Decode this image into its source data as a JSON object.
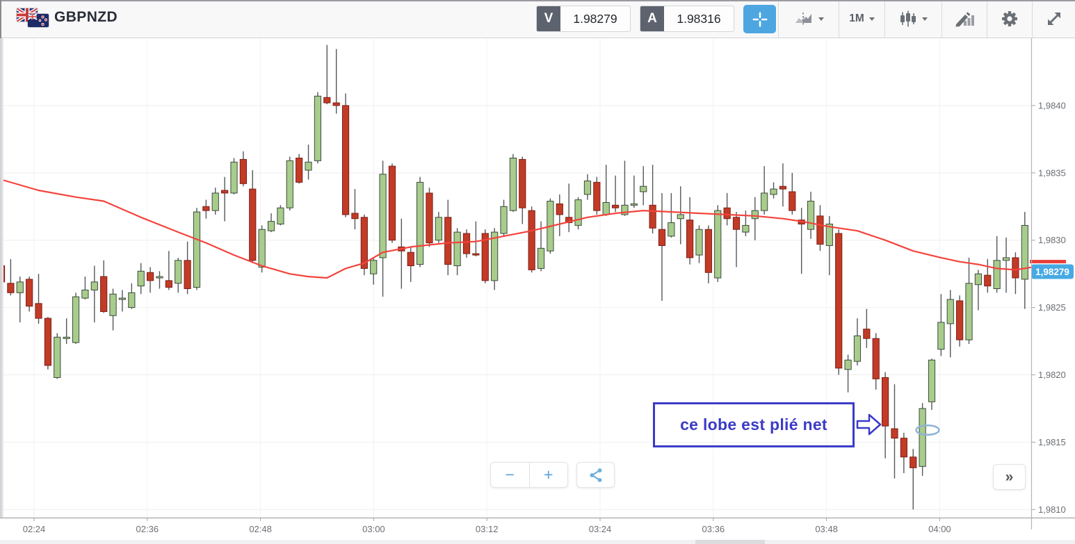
{
  "header": {
    "symbol": "GBPNZD",
    "sell": {
      "label": "V",
      "price": "1.98279"
    },
    "buy": {
      "label": "A",
      "price": "1.98316"
    },
    "interval": "1M",
    "crosshair_color": "#4da6e0"
  },
  "toolbar": {
    "items": [
      {
        "icon": "compare-chart-icon",
        "has_caret": true
      },
      {
        "icon": "interval-label",
        "label": "1M",
        "has_caret": true
      },
      {
        "icon": "chart-type-candles-icon",
        "has_caret": true
      },
      {
        "icon": "draw-indicator-icon"
      },
      {
        "icon": "settings-gear-icon"
      },
      {
        "icon": "fullscreen-icon"
      }
    ]
  },
  "annotation": {
    "text": "ce lobe est plié net",
    "color": "#3b3bc8",
    "arrow_fill": "#ffffff",
    "ellipse_color": "#8fb2d4"
  },
  "controls": {
    "zoom_out_label": "−",
    "zoom_in_label": "+",
    "share_icon": "share-icon",
    "collapse_label": "»"
  },
  "chart_data": {
    "type": "candlestick",
    "symbol": "GBPNZD",
    "interval": "1m",
    "grid": true,
    "ylim": [
      1.98094,
      1.9845
    ],
    "up_color": "#a8cc8c",
    "up_border": "#3c4a3c",
    "down_color": "#c23b26",
    "down_border": "#7d1f16",
    "wick_color": "#54575c",
    "ma_color": "#f4433c",
    "price_tag_color": "#47a9e3",
    "price_line_color": "#e8403a",
    "current_price": 1.98279,
    "current_price_label": "1,98279",
    "y_ticks": [
      {
        "price": 1.984,
        "label": "1,9840"
      },
      {
        "price": 1.9835,
        "label": "1,9835"
      },
      {
        "price": 1.983,
        "label": "1,9830"
      },
      {
        "price": 1.9825,
        "label": "1,9825"
      },
      {
        "price": 1.982,
        "label": "1,9820"
      },
      {
        "price": 1.9815,
        "label": "1,9815"
      },
      {
        "price": 1.981,
        "label": "1,9810"
      }
    ],
    "x_ticks": [
      "02:24",
      "02:36",
      "02:48",
      "03:00",
      "03:12",
      "03:24",
      "03:36",
      "03:48",
      "04:00"
    ],
    "candles": [
      [
        1.98281,
        1.98291,
        1.98267,
        1.98269,
        "d"
      ],
      [
        1.98268,
        1.98286,
        1.98259,
        1.98261,
        "d"
      ],
      [
        1.98261,
        1.98273,
        1.98239,
        1.98269,
        "u"
      ],
      [
        1.98271,
        1.98273,
        1.98247,
        1.98251,
        "d"
      ],
      [
        1.98253,
        1.98275,
        1.98238,
        1.98242,
        "d"
      ],
      [
        1.98242,
        1.98243,
        1.98204,
        1.98207,
        "d"
      ],
      [
        1.98198,
        1.98231,
        1.98197,
        1.98228,
        "u"
      ],
      [
        1.98227,
        1.98242,
        1.98223,
        1.98228,
        "u"
      ],
      [
        1.98224,
        1.98261,
        1.98223,
        1.98258,
        "u"
      ],
      [
        1.98257,
        1.98273,
        1.98256,
        1.98263,
        "u"
      ],
      [
        1.98263,
        1.98281,
        1.98239,
        1.98269,
        "u"
      ],
      [
        1.98273,
        1.98285,
        1.98246,
        1.98247,
        "d"
      ],
      [
        1.98244,
        1.98264,
        1.98233,
        1.9826,
        "u"
      ],
      [
        1.98256,
        1.98263,
        1.98247,
        1.98257,
        "u"
      ],
      [
        1.9825,
        1.98268,
        1.98249,
        1.98261,
        "u"
      ],
      [
        1.98266,
        1.98283,
        1.9826,
        1.98277,
        "u"
      ],
      [
        1.98276,
        1.9828,
        1.98261,
        1.9827,
        "d"
      ],
      [
        1.98272,
        1.98277,
        1.98264,
        1.98273,
        "u"
      ],
      [
        1.9827,
        1.98292,
        1.98263,
        1.98265,
        "d"
      ],
      [
        1.98268,
        1.98287,
        1.98261,
        1.98285,
        "u"
      ],
      [
        1.98285,
        1.98299,
        1.9826,
        1.98264,
        "d"
      ],
      [
        1.98265,
        1.98324,
        1.98263,
        1.98321,
        "u"
      ],
      [
        1.98325,
        1.9833,
        1.98316,
        1.98322,
        "d"
      ],
      [
        1.98322,
        1.98339,
        1.98319,
        1.98335,
        "u"
      ],
      [
        1.98337,
        1.98347,
        1.98314,
        1.98335,
        "d"
      ],
      [
        1.98335,
        1.98361,
        1.98334,
        1.98358,
        "u"
      ],
      [
        1.9836,
        1.98366,
        1.9834,
        1.98342,
        "d"
      ],
      [
        1.98338,
        1.98352,
        1.98283,
        1.98285,
        "d"
      ],
      [
        1.9828,
        1.98311,
        1.98276,
        1.98308,
        "u"
      ],
      [
        1.98307,
        1.9832,
        1.98306,
        1.98314,
        "u"
      ],
      [
        1.98312,
        1.98326,
        1.98311,
        1.98324,
        "u"
      ],
      [
        1.98324,
        1.98362,
        1.98322,
        1.98359,
        "u"
      ],
      [
        1.98361,
        1.98364,
        1.98342,
        1.98343,
        "d"
      ],
      [
        1.98352,
        1.98371,
        1.98345,
        1.98358,
        "u"
      ],
      [
        1.98359,
        1.9841,
        1.98357,
        1.98407,
        "u"
      ],
      [
        1.98406,
        1.98445,
        1.98401,
        1.98402,
        "d"
      ],
      [
        1.98402,
        1.98442,
        1.98394,
        1.984,
        "d"
      ],
      [
        1.984,
        1.98409,
        1.98317,
        1.98319,
        "d"
      ],
      [
        1.9832,
        1.98338,
        1.98308,
        1.98316,
        "d"
      ],
      [
        1.98317,
        1.98319,
        1.98274,
        1.98279,
        "d"
      ],
      [
        1.98275,
        1.98287,
        1.98267,
        1.98285,
        "u"
      ],
      [
        1.98287,
        1.98359,
        1.98258,
        1.98349,
        "u"
      ],
      [
        1.98355,
        1.98357,
        1.98298,
        1.983,
        "d"
      ],
      [
        1.98295,
        1.98316,
        1.98264,
        1.98292,
        "d"
      ],
      [
        1.98291,
        1.98295,
        1.98269,
        1.98281,
        "d"
      ],
      [
        1.98282,
        1.98347,
        1.9828,
        1.98343,
        "u"
      ],
      [
        1.98335,
        1.98339,
        1.98295,
        1.98298,
        "d"
      ],
      [
        1.983,
        1.98321,
        1.98298,
        1.98317,
        "u"
      ],
      [
        1.98317,
        1.9833,
        1.98274,
        1.98282,
        "d"
      ],
      [
        1.98281,
        1.98309,
        1.98274,
        1.98306,
        "u"
      ],
      [
        1.98305,
        1.98308,
        1.98287,
        1.9829,
        "d"
      ],
      [
        1.9829,
        1.98314,
        1.98288,
        1.98289,
        "d"
      ],
      [
        1.98305,
        1.98308,
        1.98268,
        1.9827,
        "d"
      ],
      [
        1.9827,
        1.98309,
        1.98263,
        1.98306,
        "u"
      ],
      [
        1.98305,
        1.9833,
        1.98303,
        1.98325,
        "u"
      ],
      [
        1.98322,
        1.98364,
        1.98321,
        1.98361,
        "u"
      ],
      [
        1.9836,
        1.98362,
        1.98312,
        1.98324,
        "d"
      ],
      [
        1.98322,
        1.98325,
        1.98276,
        1.98278,
        "d"
      ],
      [
        1.98279,
        1.98314,
        1.98277,
        1.98294,
        "u"
      ],
      [
        1.98292,
        1.98331,
        1.9829,
        1.98329,
        "u"
      ],
      [
        1.98327,
        1.98334,
        1.98303,
        1.98319,
        "d"
      ],
      [
        1.98317,
        1.98342,
        1.98306,
        1.98313,
        "d"
      ],
      [
        1.98311,
        1.98332,
        1.98308,
        1.9833,
        "u"
      ],
      [
        1.98334,
        1.98349,
        1.9833,
        1.98344,
        "u"
      ],
      [
        1.98343,
        1.98347,
        1.98319,
        1.98322,
        "d"
      ],
      [
        1.98319,
        1.98356,
        1.98318,
        1.98328,
        "u"
      ],
      [
        1.98326,
        1.98348,
        1.98321,
        1.98324,
        "d"
      ],
      [
        1.98319,
        1.98359,
        1.98318,
        1.98326,
        "u"
      ],
      [
        1.98326,
        1.98348,
        1.98324,
        1.98327,
        "u"
      ],
      [
        1.98336,
        1.98355,
        1.98326,
        1.9834,
        "u"
      ],
      [
        1.98326,
        1.98356,
        1.98305,
        1.98309,
        "d"
      ],
      [
        1.98308,
        1.98335,
        1.98255,
        1.98296,
        "d"
      ],
      [
        1.98303,
        1.98335,
        1.98302,
        1.98313,
        "u"
      ],
      [
        1.98316,
        1.9834,
        1.98297,
        1.98319,
        "u"
      ],
      [
        1.98315,
        1.98332,
        1.98282,
        1.98287,
        "d"
      ],
      [
        1.98289,
        1.98311,
        1.98283,
        1.98308,
        "u"
      ],
      [
        1.98308,
        1.98311,
        1.98268,
        1.98276,
        "d"
      ],
      [
        1.98272,
        1.98326,
        1.98269,
        1.98322,
        "u"
      ],
      [
        1.98324,
        1.98335,
        1.98311,
        1.98316,
        "d"
      ],
      [
        1.98317,
        1.98321,
        1.9828,
        1.98308,
        "d"
      ],
      [
        1.98306,
        1.98322,
        1.98303,
        1.98311,
        "u"
      ],
      [
        1.98316,
        1.98332,
        1.983,
        1.98322,
        "u"
      ],
      [
        1.98322,
        1.98355,
        1.98319,
        1.98335,
        "u"
      ],
      [
        1.98334,
        1.98343,
        1.98331,
        1.98338,
        "u"
      ],
      [
        1.9834,
        1.98357,
        1.98325,
        1.98338,
        "d"
      ],
      [
        1.98336,
        1.9835,
        1.98319,
        1.98322,
        "d"
      ],
      [
        1.98315,
        1.98324,
        1.98275,
        1.98312,
        "d"
      ],
      [
        1.98308,
        1.98336,
        1.98301,
        1.98329,
        "u"
      ],
      [
        1.98318,
        1.98326,
        1.98292,
        1.98297,
        "d"
      ],
      [
        1.98296,
        1.98318,
        1.98274,
        1.98312,
        "u"
      ],
      [
        1.98305,
        1.98308,
        1.982,
        1.98205,
        "d"
      ],
      [
        1.98204,
        1.98215,
        1.98187,
        1.98211,
        "u"
      ],
      [
        1.9821,
        1.98242,
        1.98207,
        1.98229,
        "u"
      ],
      [
        1.98234,
        1.98249,
        1.9822,
        1.98227,
        "d"
      ],
      [
        1.98227,
        1.98231,
        1.98189,
        1.98197,
        "d"
      ],
      [
        1.98198,
        1.98202,
        1.98138,
        1.98162,
        "d"
      ],
      [
        1.9816,
        1.98193,
        1.98123,
        1.98153,
        "d"
      ],
      [
        1.98153,
        1.98157,
        1.98127,
        1.98139,
        "d"
      ],
      [
        1.98139,
        1.98145,
        1.981,
        1.98131,
        "d"
      ],
      [
        1.98132,
        1.98179,
        1.98125,
        1.98175,
        "u"
      ],
      [
        1.9818,
        1.98212,
        1.98174,
        1.98211,
        "u"
      ],
      [
        1.98219,
        1.9826,
        1.98214,
        1.98239,
        "u"
      ],
      [
        1.98238,
        1.98263,
        1.98213,
        1.98256,
        "u"
      ],
      [
        1.98255,
        1.98259,
        1.98221,
        1.98226,
        "d"
      ],
      [
        1.98226,
        1.98287,
        1.98223,
        1.98268,
        "u"
      ],
      [
        1.98267,
        1.98278,
        1.98248,
        1.98275,
        "u"
      ],
      [
        1.98274,
        1.98286,
        1.98261,
        1.98266,
        "d"
      ],
      [
        1.98264,
        1.98303,
        1.98261,
        1.98285,
        "u"
      ],
      [
        1.98285,
        1.98302,
        1.98261,
        1.98287,
        "u"
      ],
      [
        1.98287,
        1.98291,
        1.9826,
        1.98272,
        "d"
      ],
      [
        1.98271,
        1.98321,
        1.98249,
        1.98311,
        "u"
      ]
    ],
    "ma": [
      [
        0,
        1.98345
      ],
      [
        4,
        1.98337
      ],
      [
        8,
        1.98332
      ],
      [
        11,
        1.98329
      ],
      [
        15,
        1.98317
      ],
      [
        19,
        1.98306
      ],
      [
        22,
        1.98298
      ],
      [
        25,
        1.98289
      ],
      [
        28,
        1.98281
      ],
      [
        31,
        1.98275
      ],
      [
        33,
        1.98273
      ],
      [
        35,
        1.98272
      ],
      [
        37,
        1.98279
      ],
      [
        39,
        1.98283
      ],
      [
        41,
        1.98291
      ],
      [
        44,
        1.98295
      ],
      [
        48,
        1.98298
      ],
      [
        51,
        1.98299
      ],
      [
        54,
        1.98303
      ],
      [
        57,
        1.98307
      ],
      [
        60,
        1.98312
      ],
      [
        63,
        1.98317
      ],
      [
        66,
        1.9832
      ],
      [
        69,
        1.98322
      ],
      [
        72,
        1.98321
      ],
      [
        75,
        1.9832
      ],
      [
        78,
        1.98319
      ],
      [
        81,
        1.98318
      ],
      [
        84,
        1.98316
      ],
      [
        86,
        1.98314
      ],
      [
        89,
        1.9831
      ],
      [
        92,
        1.98307
      ],
      [
        95,
        1.983
      ],
      [
        98,
        1.98292
      ],
      [
        101,
        1.98287
      ],
      [
        103,
        1.98284
      ],
      [
        105,
        1.98282
      ],
      [
        107,
        1.98279
      ],
      [
        109,
        1.98278
      ],
      [
        110.8,
        1.9828
      ]
    ]
  }
}
